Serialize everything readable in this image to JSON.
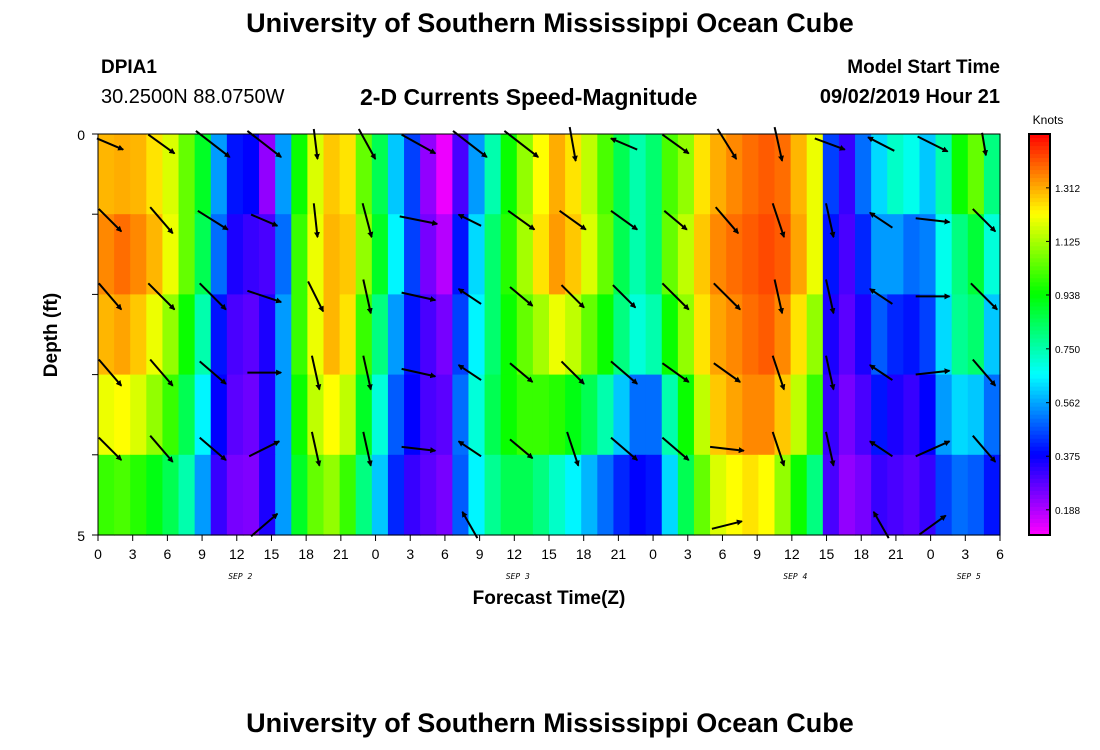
{
  "header": {
    "title": "University of Southern Mississippi Ocean Cube",
    "station_id": "DPIA1",
    "station_coords": "30.2500N 88.0750W",
    "chart_title": "2-D Currents Speed-Magnitude",
    "model_start_label": "Model Start Time",
    "model_start_value": "09/02/2019 Hour 21"
  },
  "footer": {
    "title": "University of Southern Mississippi Ocean Cube"
  },
  "chart_data": {
    "type": "heatmap",
    "title": "2-D Currents Speed-Magnitude",
    "xlabel": "Forecast Time(Z)",
    "ylabel": "Depth (ft)",
    "x_tick_labels": [
      "0",
      "3",
      "6",
      "9",
      "12",
      "15",
      "18",
      "21",
      "0",
      "3",
      "6",
      "9",
      "12",
      "15",
      "18",
      "21",
      "0",
      "3",
      "6",
      "9",
      "12",
      "15",
      "18",
      "21",
      "0",
      "3",
      "6"
    ],
    "day_labels": [
      {
        "label": "SEP 2",
        "tick_index": 4
      },
      {
        "label": "SEP 3",
        "tick_index": 12
      },
      {
        "label": "SEP 4",
        "tick_index": 20
      },
      {
        "label": "SEP 5",
        "tick_index": 25
      }
    ],
    "y_tick_labels": [
      "0",
      "5"
    ],
    "ylim": [
      0,
      5
    ],
    "depth_levels": 5,
    "colorbar": {
      "title": "Knots",
      "tick_labels": [
        "1.312",
        "1.125",
        "0.938",
        "0.750",
        "0.562",
        "0.375",
        "0.188"
      ],
      "range": [
        0.1,
        1.5
      ]
    },
    "speed_knots": [
      [
        1.3,
        1.31,
        1.3,
        1.25,
        1.18,
        1.05,
        0.9,
        0.55,
        0.4,
        0.38,
        0.22,
        0.55,
        0.95,
        1.18,
        1.28,
        1.25,
        1.05,
        0.85,
        0.6,
        0.45,
        0.22,
        0.12,
        0.3,
        0.55,
        0.75,
        0.95,
        1.1,
        1.22,
        1.31,
        1.25,
        1.15,
        1.02,
        0.85,
        0.75,
        0.82,
        1.02,
        1.1,
        1.25,
        1.31,
        1.35,
        1.38,
        1.4,
        1.38,
        1.3,
        1.2,
        0.45,
        0.32,
        0.5,
        0.62,
        0.72,
        0.68,
        0.6,
        0.75,
        0.95,
        1.05,
        0.8
      ],
      [
        1.35,
        1.38,
        1.35,
        1.3,
        1.2,
        1.05,
        0.85,
        0.5,
        0.35,
        0.32,
        0.3,
        0.5,
        1.0,
        1.2,
        1.3,
        1.28,
        1.1,
        0.9,
        0.65,
        0.45,
        0.25,
        0.18,
        0.4,
        0.62,
        0.82,
        0.98,
        1.12,
        1.25,
        1.33,
        1.28,
        1.18,
        1.05,
        0.85,
        0.75,
        0.82,
        1.05,
        1.15,
        1.28,
        1.35,
        1.38,
        1.4,
        1.42,
        1.4,
        1.32,
        1.2,
        0.4,
        0.3,
        0.42,
        0.55,
        0.55,
        0.5,
        0.52,
        0.68,
        0.8,
        0.88,
        0.7
      ],
      [
        1.3,
        1.32,
        1.28,
        1.2,
        1.1,
        0.95,
        0.75,
        0.4,
        0.3,
        0.28,
        0.35,
        0.55,
        1.0,
        1.2,
        1.3,
        1.25,
        1.0,
        0.8,
        0.55,
        0.4,
        0.3,
        0.25,
        0.45,
        0.65,
        0.82,
        0.95,
        1.05,
        1.12,
        1.2,
        1.15,
        1.05,
        0.95,
        0.8,
        0.7,
        0.75,
        0.95,
        1.1,
        1.25,
        1.32,
        1.35,
        1.38,
        1.4,
        1.35,
        1.25,
        1.1,
        0.35,
        0.28,
        0.35,
        0.48,
        0.42,
        0.4,
        0.45,
        0.62,
        0.78,
        0.82,
        0.6
      ],
      [
        1.2,
        1.22,
        1.18,
        1.1,
        1.0,
        0.85,
        0.65,
        0.38,
        0.28,
        0.26,
        0.35,
        0.55,
        0.95,
        1.15,
        1.22,
        1.15,
        0.9,
        0.7,
        0.48,
        0.38,
        0.3,
        0.28,
        0.5,
        0.7,
        0.85,
        0.95,
        1.0,
        1.0,
        0.98,
        0.92,
        0.85,
        0.75,
        0.6,
        0.5,
        0.5,
        0.75,
        0.95,
        1.15,
        1.28,
        1.32,
        1.35,
        1.35,
        1.28,
        1.15,
        1.0,
        0.32,
        0.25,
        0.3,
        0.4,
        0.35,
        0.32,
        0.38,
        0.55,
        0.62,
        0.6,
        0.5
      ],
      [
        1.0,
        1.02,
        0.98,
        0.92,
        0.85,
        0.75,
        0.55,
        0.32,
        0.25,
        0.24,
        0.35,
        0.55,
        0.9,
        1.05,
        1.1,
        1.0,
        0.8,
        0.6,
        0.42,
        0.32,
        0.28,
        0.25,
        0.48,
        0.65,
        0.78,
        0.85,
        0.85,
        0.8,
        0.72,
        0.65,
        0.58,
        0.5,
        0.42,
        0.38,
        0.4,
        0.62,
        0.85,
        1.05,
        1.18,
        1.22,
        1.25,
        1.22,
        1.1,
        0.95,
        0.8,
        0.3,
        0.22,
        0.25,
        0.32,
        0.3,
        0.28,
        0.32,
        0.45,
        0.5,
        0.48,
        0.4
      ]
    ],
    "vectors": [
      [
        [
          3.5,
          1.5
        ],
        [
          3.5,
          2.5
        ],
        [
          4.5,
          3.5
        ],
        [
          4.5,
          3.5
        ],
        [
          0.5,
          4.0
        ],
        [
          2.2,
          4.0
        ],
        [
          4.5,
          2.5
        ],
        [
          4.5,
          3.5
        ],
        [
          4.5,
          3.5
        ],
        [
          0.8,
          4.5
        ],
        [
          -3.5,
          -1.5
        ],
        [
          3.5,
          2.5
        ],
        [
          2.5,
          4.0
        ],
        [
          1.0,
          4.5
        ],
        [
          4.0,
          1.5
        ],
        [
          -3.5,
          -1.8
        ],
        [
          4.0,
          2.0
        ],
        [
          0.5,
          3.0
        ]
      ],
      [
        [
          3.0,
          3.0
        ],
        [
          3.0,
          3.5
        ],
        [
          4.0,
          2.5
        ],
        [
          3.5,
          1.5
        ],
        [
          0.5,
          4.5
        ],
        [
          1.2,
          4.5
        ],
        [
          5.0,
          1.0
        ],
        [
          -3.0,
          -1.5
        ],
        [
          3.5,
          2.5
        ],
        [
          3.5,
          2.5
        ],
        [
          3.5,
          2.5
        ],
        [
          3.0,
          2.5
        ],
        [
          3.0,
          3.5
        ],
        [
          1.5,
          4.5
        ],
        [
          1.0,
          4.5
        ],
        [
          -3.0,
          -2.0
        ],
        [
          4.5,
          0.5
        ],
        [
          3.0,
          3.0
        ]
      ],
      [
        [
          3.0,
          3.5
        ],
        [
          3.5,
          3.5
        ],
        [
          3.5,
          3.5
        ],
        [
          4.5,
          1.5
        ],
        [
          2.0,
          4.0
        ],
        [
          1.0,
          4.5
        ],
        [
          4.5,
          1.0
        ],
        [
          -3.0,
          -2.0
        ],
        [
          3.0,
          2.5
        ],
        [
          3.0,
          3.0
        ],
        [
          3.0,
          3.0
        ],
        [
          3.5,
          3.5
        ],
        [
          3.5,
          3.5
        ],
        [
          1.0,
          4.5
        ],
        [
          1.0,
          4.5
        ],
        [
          -3.0,
          -2.0
        ],
        [
          4.5,
          0.0
        ],
        [
          3.5,
          3.5
        ]
      ],
      [
        [
          3.0,
          3.5
        ],
        [
          3.0,
          3.5
        ],
        [
          3.5,
          3.0
        ],
        [
          4.5,
          0.0
        ],
        [
          1.0,
          4.5
        ],
        [
          1.0,
          4.5
        ],
        [
          4.5,
          1.0
        ],
        [
          -3.0,
          -2.0
        ],
        [
          3.0,
          2.5
        ],
        [
          3.0,
          3.0
        ],
        [
          3.5,
          3.0
        ],
        [
          3.5,
          2.5
        ],
        [
          3.5,
          2.5
        ],
        [
          1.5,
          4.5
        ],
        [
          1.0,
          4.5
        ],
        [
          -3.0,
          -2.0
        ],
        [
          4.5,
          -0.5
        ],
        [
          3.0,
          3.5
        ]
      ],
      [
        [
          3.0,
          3.0
        ],
        [
          3.0,
          3.5
        ],
        [
          3.5,
          3.0
        ],
        [
          4.0,
          -2.0
        ],
        [
          1.0,
          4.5
        ],
        [
          1.0,
          4.5
        ],
        [
          4.5,
          0.5
        ],
        [
          -3.0,
          -2.0
        ],
        [
          3.0,
          2.5
        ],
        [
          1.5,
          4.5
        ],
        [
          3.5,
          3.0
        ],
        [
          3.5,
          3.0
        ],
        [
          4.5,
          0.5
        ],
        [
          1.5,
          4.5
        ],
        [
          1.0,
          4.5
        ],
        [
          -3.0,
          -2.0
        ],
        [
          4.5,
          -2.0
        ],
        [
          3.0,
          3.5
        ]
      ],
      [
        [
          0,
          0
        ],
        [
          0,
          0
        ],
        [
          0,
          0
        ],
        [
          3.5,
          -3.0
        ],
        [
          0,
          0
        ],
        [
          0,
          0
        ],
        [
          0,
          0
        ],
        [
          -2.0,
          -3.5
        ],
        [
          0,
          0
        ],
        [
          0,
          0
        ],
        [
          0,
          0
        ],
        [
          0,
          0
        ],
        [
          4.0,
          -1.0
        ],
        [
          0,
          0
        ],
        [
          0,
          0
        ],
        [
          -2.0,
          -3.5
        ],
        [
          3.5,
          -2.5
        ],
        [
          0,
          0
        ]
      ]
    ]
  }
}
